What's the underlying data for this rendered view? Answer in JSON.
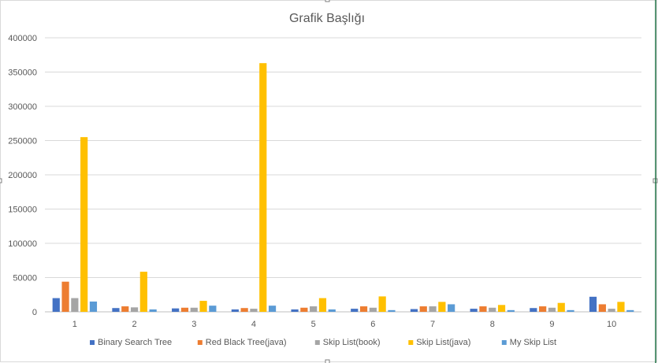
{
  "chart_data": {
    "type": "bar",
    "title": "Grafik Başlığı",
    "xlabel": "",
    "ylabel": "",
    "categories": [
      "1",
      "2",
      "3",
      "4",
      "5",
      "6",
      "7",
      "8",
      "9",
      "10"
    ],
    "ylim": [
      0,
      400000
    ],
    "yticks": [
      "0",
      "50000",
      "100000",
      "150000",
      "200000",
      "250000",
      "300000",
      "350000",
      "400000"
    ],
    "grid": true,
    "legend_position": "bottom",
    "series": [
      {
        "name": "Binary Search Tree",
        "color": "#4472C4",
        "values": [
          20000,
          5500,
          5000,
          3500,
          3500,
          4500,
          4000,
          4500,
          5500,
          22000
        ]
      },
      {
        "name": "Red Black Tree(java)",
        "color": "#ED7D31",
        "values": [
          44000,
          8000,
          6000,
          5500,
          6000,
          8000,
          8000,
          8000,
          8000,
          11000
        ]
      },
      {
        "name": "Skip List(book)",
        "color": "#A5A5A5",
        "values": [
          20000,
          6500,
          6000,
          4500,
          8000,
          6000,
          8000,
          6000,
          6000,
          4500
        ]
      },
      {
        "name": "Skip List(java)",
        "color": "#FFC000",
        "values": [
          255000,
          58500,
          16000,
          363000,
          20000,
          22500,
          14500,
          10000,
          13000,
          14500
        ]
      },
      {
        "name": "My Skip List",
        "color": "#5B9BD5",
        "values": [
          15000,
          3500,
          9000,
          9000,
          3500,
          2500,
          11000,
          2500,
          2500,
          2500
        ]
      }
    ]
  }
}
